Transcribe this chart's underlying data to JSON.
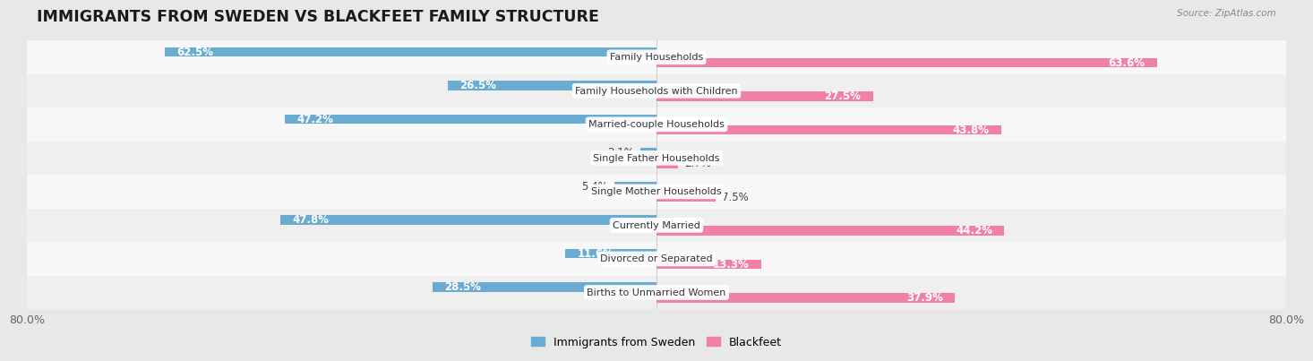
{
  "title": "IMMIGRANTS FROM SWEDEN VS BLACKFEET FAMILY STRUCTURE",
  "source": "Source: ZipAtlas.com",
  "categories": [
    "Family Households",
    "Family Households with Children",
    "Married-couple Households",
    "Single Father Households",
    "Single Mother Households",
    "Currently Married",
    "Divorced or Separated",
    "Births to Unmarried Women"
  ],
  "sweden_values": [
    62.5,
    26.5,
    47.2,
    2.1,
    5.4,
    47.8,
    11.6,
    28.5
  ],
  "blackfeet_values": [
    63.6,
    27.5,
    43.8,
    2.7,
    7.5,
    44.2,
    13.3,
    37.9
  ],
  "max_value": 80.0,
  "sweden_color": "#6aabd2",
  "blackfeet_color": "#f07faa",
  "sweden_color_light": "#a8cfe8",
  "blackfeet_color_light": "#f5aec8",
  "sweden_label": "Immigrants from Sweden",
  "blackfeet_label": "Blackfeet",
  "bg_color": "#e8e8e8",
  "row_bg_even": "#f7f7f7",
  "row_bg_odd": "#efefef",
  "axis_label_color": "#666666",
  "title_color": "#1a1a1a",
  "bar_label_font_size": 8.5,
  "category_font_size": 8.0,
  "title_font_size": 12.5
}
